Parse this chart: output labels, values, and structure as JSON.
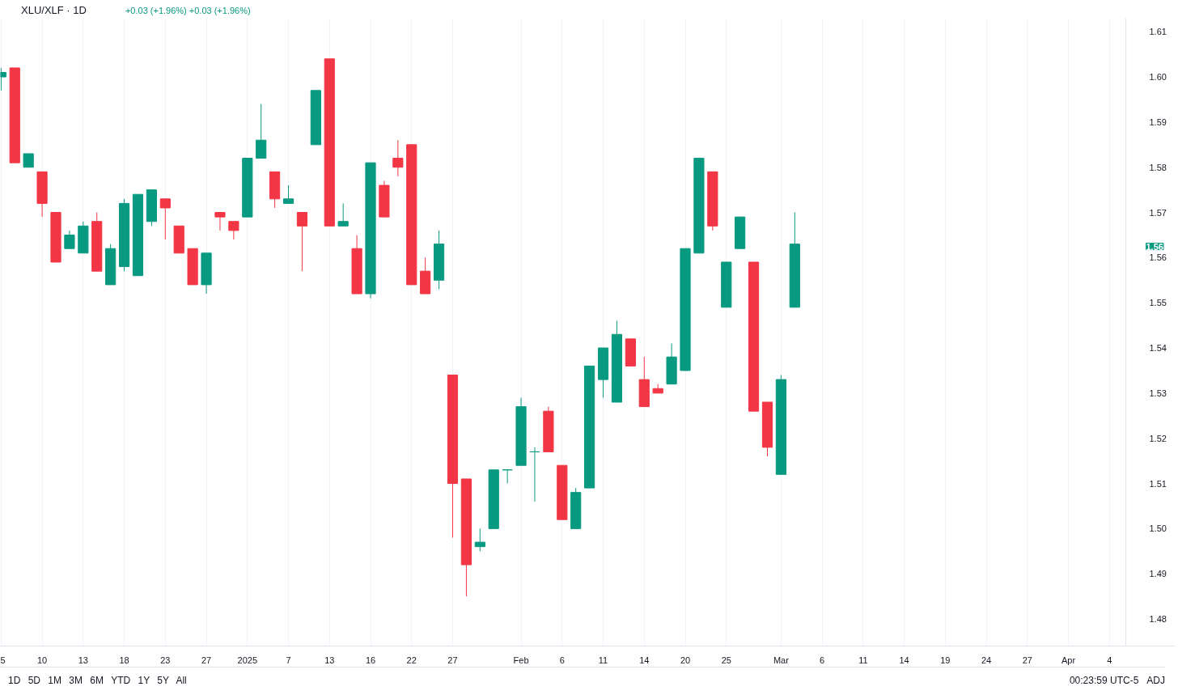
{
  "chart_data": {
    "type": "candlestick",
    "title": "XLU/XLF · 1D",
    "subtitle": "+0.03 (+1.96%) +0.03 (+1.96%)",
    "categories": [
      "5",
      null,
      null,
      "10",
      null,
      null,
      "13",
      null,
      null,
      "18",
      null,
      null,
      "23",
      null,
      null,
      "27",
      null,
      null,
      "2025",
      null,
      null,
      "7",
      null,
      null,
      "13",
      null,
      null,
      "16",
      null,
      null,
      "22",
      null,
      null,
      "27",
      null,
      null,
      null,
      null,
      "Feb",
      null,
      null,
      "6",
      null,
      null,
      "11",
      null,
      null,
      "14",
      null,
      null,
      "20",
      null,
      null,
      "25",
      null,
      null,
      null,
      "Mar",
      null,
      null,
      "6",
      null,
      null,
      "11",
      null,
      null,
      "14",
      null,
      null,
      "19",
      null,
      null,
      "24",
      null,
      null,
      "27",
      null,
      null,
      "Apr",
      null,
      null,
      "4"
    ],
    "ohlc": [
      [
        1.6,
        1.602,
        1.597,
        1.601
      ],
      [
        1.602,
        1.602,
        1.581,
        1.581
      ],
      [
        1.58,
        1.583,
        1.58,
        1.583
      ],
      [
        1.579,
        1.579,
        1.569,
        1.572
      ],
      [
        1.57,
        1.57,
        1.559,
        1.559
      ],
      [
        1.562,
        1.566,
        1.562,
        1.565
      ],
      [
        1.561,
        1.568,
        1.561,
        1.567
      ],
      [
        1.568,
        1.57,
        1.557,
        1.557
      ],
      [
        1.554,
        1.563,
        1.554,
        1.562
      ],
      [
        1.558,
        1.573,
        1.557,
        1.572
      ],
      [
        1.556,
        1.574,
        1.556,
        1.574
      ],
      [
        1.568,
        1.575,
        1.567,
        1.575
      ],
      [
        1.573,
        1.573,
        1.564,
        1.571
      ],
      [
        1.567,
        1.567,
        1.561,
        1.561
      ],
      [
        1.562,
        1.562,
        1.554,
        1.554
      ],
      [
        1.554,
        1.561,
        1.552,
        1.561
      ],
      [
        1.57,
        1.57,
        1.566,
        1.569
      ],
      [
        1.568,
        1.568,
        1.564,
        1.566
      ],
      [
        1.569,
        1.582,
        1.569,
        1.582
      ],
      [
        1.582,
        1.594,
        1.582,
        1.586
      ],
      [
        1.579,
        1.579,
        1.571,
        1.573
      ],
      [
        1.572,
        1.576,
        1.572,
        1.573
      ],
      [
        1.57,
        1.57,
        1.557,
        1.567
      ],
      [
        1.585,
        1.597,
        1.585,
        1.597
      ],
      [
        1.604,
        1.604,
        1.567,
        1.567
      ],
      [
        1.567,
        1.572,
        1.567,
        1.568
      ],
      [
        1.562,
        1.565,
        1.552,
        1.552
      ],
      [
        1.552,
        1.581,
        1.551,
        1.581
      ],
      [
        1.576,
        1.577,
        1.569,
        1.569
      ],
      [
        1.582,
        1.586,
        1.578,
        1.58
      ],
      [
        1.585,
        1.585,
        1.554,
        1.554
      ],
      [
        1.557,
        1.56,
        1.552,
        1.552
      ],
      [
        1.555,
        1.566,
        1.553,
        1.563
      ],
      [
        1.534,
        1.534,
        1.498,
        1.51
      ],
      [
        1.511,
        1.511,
        1.485,
        1.492
      ],
      [
        1.496,
        1.5,
        1.495,
        1.497
      ],
      [
        1.5,
        1.513,
        1.5,
        1.513
      ],
      [
        1.513,
        1.513,
        1.51,
        1.513
      ],
      [
        1.514,
        1.529,
        1.514,
        1.527
      ],
      [
        1.517,
        1.518,
        1.506,
        1.517
      ],
      [
        1.526,
        1.527,
        1.517,
        1.517
      ],
      [
        1.514,
        1.514,
        1.502,
        1.502
      ],
      [
        1.5,
        1.509,
        1.5,
        1.508
      ],
      [
        1.509,
        1.536,
        1.509,
        1.536
      ],
      [
        1.533,
        1.54,
        1.529,
        1.54
      ],
      [
        1.528,
        1.546,
        1.528,
        1.543
      ],
      [
        1.542,
        1.542,
        1.536,
        1.536
      ],
      [
        1.533,
        1.538,
        1.527,
        1.527
      ],
      [
        1.531,
        1.532,
        1.53,
        1.53
      ],
      [
        1.532,
        1.541,
        1.532,
        1.538
      ],
      [
        1.535,
        1.562,
        1.535,
        1.562
      ],
      [
        1.561,
        1.582,
        1.561,
        1.582
      ],
      [
        1.579,
        1.579,
        1.566,
        1.567
      ],
      [
        1.549,
        1.559,
        1.549,
        1.559
      ],
      [
        1.562,
        1.569,
        1.562,
        1.569
      ],
      [
        1.559,
        1.559,
        1.526,
        1.526
      ],
      [
        1.528,
        1.528,
        1.516,
        1.518
      ],
      [
        1.512,
        1.534,
        1.512,
        1.533
      ],
      [
        1.549,
        1.57,
        1.549,
        1.563
      ],
      null,
      null,
      null,
      null,
      null,
      null,
      null,
      null,
      null,
      null,
      null,
      null,
      null,
      null,
      null,
      null,
      null,
      null,
      null,
      null,
      null,
      null,
      null
    ],
    "colors": [
      "#089981",
      "#f23645",
      "#089981",
      "#f23645",
      "#f23645",
      "#089981",
      "#089981",
      "#f23645",
      "#089981",
      "#089981",
      "#089981",
      "#089981",
      "#f23645",
      "#f23645",
      "#f23645",
      "#089981",
      "#f23645",
      "#f23645",
      "#089981",
      "#089981",
      "#f23645",
      "#089981",
      "#f23645",
      "#089981",
      "#f23645",
      "#089981",
      "#f23645",
      "#089981",
      "#f23645",
      "#f23645",
      "#f23645",
      "#f23645",
      "#089981",
      "#f23645",
      "#f23645",
      "#089981",
      "#089981",
      "#089981",
      "#089981",
      "#089981",
      "#f23645",
      "#f23645",
      "#089981",
      "#089981",
      "#089981",
      "#089981",
      "#f23645",
      "#f23645",
      "#f23645",
      "#089981",
      "#089981",
      "#089981",
      "#f23645",
      "#089981",
      "#089981",
      "#f23645",
      "#f23645",
      "#089981",
      "#089981",
      null,
      null,
      null,
      null,
      null,
      null,
      null,
      null,
      null,
      null,
      null,
      null,
      null,
      null,
      null,
      null,
      null,
      null,
      null,
      null,
      null,
      null,
      null
    ],
    "ylim": [
      1.474,
      1.613
    ],
    "yticks": [
      1.48,
      1.49,
      {
        "value": 1.5,
        "label": "1.50"
      },
      1.51,
      1.52,
      1.53,
      1.54,
      1.55,
      1.56,
      1.57,
      1.58,
      1.59,
      {
        "value": 1.6,
        "label": "1.60"
      },
      1.61
    ],
    "grid": "x",
    "annotations": [
      "1D 5D 1M 3M 6M YTD 1Y 5Y All",
      "00:23:59 UTC-5",
      "ADJ",
      "1.56"
    ]
  }
}
